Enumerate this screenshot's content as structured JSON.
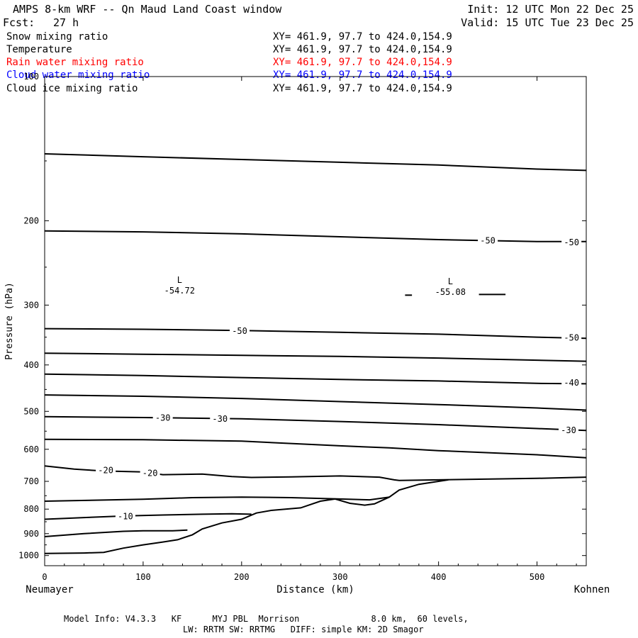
{
  "header": {
    "title": "AMPS 8-km WRF -- Qn Maud Land Coast window",
    "fcst_label": "Fcst:",
    "fcst_value": "27 h",
    "init": "Init: 12 UTC Mon 22 Dec 25",
    "valid": "Valid: 15 UTC Tue 23 Dec 25"
  },
  "variables": [
    {
      "name": "Snow mixing ratio",
      "xy": "XY= 461.9, 97.7 to 424.0,154.9",
      "color": "#000000"
    },
    {
      "name": "Temperature",
      "xy": "XY= 461.9, 97.7 to 424.0,154.9",
      "color": "#000000"
    },
    {
      "name": "Rain water mixing ratio",
      "xy": "XY= 461.9, 97.7 to 424.0,154.9",
      "color": "#ff0000"
    },
    {
      "name": "Cloud water mixing ratio",
      "xy": "XY= 461.9, 97.7 to 424.0,154.9",
      "color": "#0000ff"
    },
    {
      "name": "Cloud ice mixing ratio",
      "xy": "XY= 461.9, 97.7 to 424.0,154.9",
      "color": "#000000"
    }
  ],
  "footer": {
    "line1": "Model Info: V4.3.3   KF      MYJ PBL  Morrison              8.0 km,  60 levels,",
    "line2": "LW: RRTM SW: RRTMG   DIFF: simple KM: 2D Smagor"
  },
  "chart_data": {
    "type": "line",
    "title": "",
    "xlabel": "Distance (km)",
    "ylabel": "Pressure (hPa)",
    "xlim": [
      0,
      550
    ],
    "ylim": [
      1050,
      100
    ],
    "y_scale": "log",
    "x_ticks": [
      "0",
      "100",
      "200",
      "300",
      "400",
      "500"
    ],
    "y_ticks": [
      "100",
      "200",
      "300",
      "400",
      "500",
      "600",
      "700",
      "800",
      "900",
      "1000"
    ],
    "x_end_labels": {
      "left": "Neumayer",
      "right": "Kohnen"
    },
    "grid": false,
    "terrain": {
      "name": "",
      "x": [
        0,
        40,
        60,
        80,
        100,
        120,
        135,
        150,
        160,
        180,
        200,
        215,
        230,
        260,
        280,
        295,
        310,
        325,
        335,
        350,
        360,
        380,
        410
      ],
      "y": [
        990,
        988,
        985,
        965,
        950,
        937,
        927,
        905,
        880,
        855,
        840,
        815,
        805,
        795,
        770,
        762,
        778,
        785,
        780,
        755,
        730,
        710,
        695
      ]
    },
    "isotherms": [
      {
        "x": [
          0,
          100,
          200,
          300,
          400,
          500,
          550
        ],
        "y": [
          145,
          147,
          149,
          151,
          153,
          156,
          157
        ]
      },
      {
        "x": [
          0,
          100,
          200,
          300,
          400,
          500,
          550
        ],
        "y": [
          210,
          211,
          213,
          216,
          219,
          221,
          221
        ]
      },
      {
        "x": [
          0,
          100,
          200,
          300,
          400,
          500,
          550
        ],
        "y": [
          336,
          337,
          339,
          342,
          345,
          350,
          352
        ]
      },
      {
        "x": [
          0,
          100,
          200,
          300,
          400,
          500,
          550
        ],
        "y": [
          378,
          380,
          382,
          384,
          387,
          391,
          393
        ]
      },
      {
        "x": [
          0,
          100,
          200,
          300,
          400,
          500,
          550
        ],
        "y": [
          418,
          421,
          425,
          429,
          432,
          437,
          438
        ]
      },
      {
        "x": [
          0,
          100,
          200,
          300,
          400,
          500,
          550
        ],
        "y": [
          462,
          465,
          470,
          477,
          484,
          492,
          497
        ]
      },
      {
        "x": [
          0,
          100,
          200,
          300,
          400,
          500,
          550
        ],
        "y": [
          513,
          515,
          518,
          525,
          533,
          543,
          548
        ]
      },
      {
        "x": [
          0,
          100,
          200,
          300,
          350,
          400,
          500,
          550
        ],
        "y": [
          572,
          573,
          577,
          590,
          596,
          604,
          616,
          625
        ]
      },
      {
        "x": [
          0,
          30,
          60,
          100,
          120,
          160,
          190,
          210,
          250,
          300,
          340,
          355,
          360,
          400,
          500,
          550
        ],
        "y": [
          650,
          660,
          666,
          669,
          678,
          676,
          684,
          687,
          685,
          682,
          686,
          695,
          697,
          695,
          690,
          686
        ]
      },
      {
        "x": [
          0,
          100,
          150,
          200,
          250,
          300,
          330,
          350
        ],
        "y": [
          770,
          763,
          757,
          755,
          757,
          762,
          765,
          755
        ]
      },
      {
        "x": [
          0,
          40,
          80,
          120,
          160,
          190,
          210
        ],
        "y": [
          840,
          833,
          827,
          823,
          820,
          818,
          820
        ]
      },
      {
        "x": [
          0,
          40,
          80,
          100,
          130,
          145
        ],
        "y": [
          913,
          900,
          890,
          888,
          888,
          885
        ]
      }
    ],
    "contour_labels": [
      {
        "x": 450,
        "y": 220,
        "text": "-50"
      },
      {
        "x": 535,
        "y": 222,
        "text": "-50"
      },
      {
        "x": 198,
        "y": 340,
        "text": "-50"
      },
      {
        "x": 535,
        "y": 351,
        "text": "-50"
      },
      {
        "x": 535,
        "y": 436,
        "text": "-40"
      },
      {
        "x": 120,
        "y": 516,
        "text": "-30"
      },
      {
        "x": 178,
        "y": 519,
        "text": "-30"
      },
      {
        "x": 532,
        "y": 548,
        "text": "-30"
      },
      {
        "x": 62,
        "y": 664,
        "text": "-20"
      },
      {
        "x": 107,
        "y": 673,
        "text": "-20"
      },
      {
        "x": 82,
        "y": 829,
        "text": "-10"
      }
    ],
    "lows": [
      {
        "x": 137,
        "y": 280,
        "letter": "L",
        "value": "-54.72"
      },
      {
        "x": 412,
        "y": 282,
        "letter": "L",
        "value": "-55.08"
      }
    ],
    "marks": [
      {
        "x1": 366,
        "x2": 373,
        "y": 286
      },
      {
        "x1": 441,
        "x2": 468,
        "y": 285
      }
    ]
  }
}
